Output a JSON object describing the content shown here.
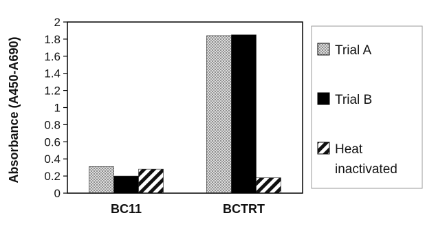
{
  "chart_data": {
    "type": "bar",
    "title": "",
    "xlabel": "",
    "ylabel": "Absorbance (A450-A690)",
    "ylim": [
      0,
      2
    ],
    "yticks": [
      "0",
      "0.2",
      "0.4",
      "0.6",
      "0.8",
      "1",
      "1.2",
      "1.4",
      "1.6",
      "1.8",
      "2"
    ],
    "categories": [
      "BC11",
      "BCTRT"
    ],
    "series": [
      {
        "name": "Trial A",
        "values": [
          0.31,
          1.84
        ],
        "fill": "dots"
      },
      {
        "name": "Trial B",
        "values": [
          0.2,
          1.85
        ],
        "fill": "solid"
      },
      {
        "name": "Heat inactivated",
        "values": [
          0.28,
          0.18
        ],
        "fill": "hatch"
      }
    ],
    "legend": {
      "placement": "right",
      "entries": [
        {
          "lines": [
            "Trial A"
          ]
        },
        {
          "lines": [
            "Trial B"
          ]
        },
        {
          "lines": [
            "Heat",
            "inactivated"
          ]
        }
      ]
    },
    "colors": {
      "solid": "#000000",
      "dots": "#555555",
      "hatch": "#111111"
    }
  }
}
